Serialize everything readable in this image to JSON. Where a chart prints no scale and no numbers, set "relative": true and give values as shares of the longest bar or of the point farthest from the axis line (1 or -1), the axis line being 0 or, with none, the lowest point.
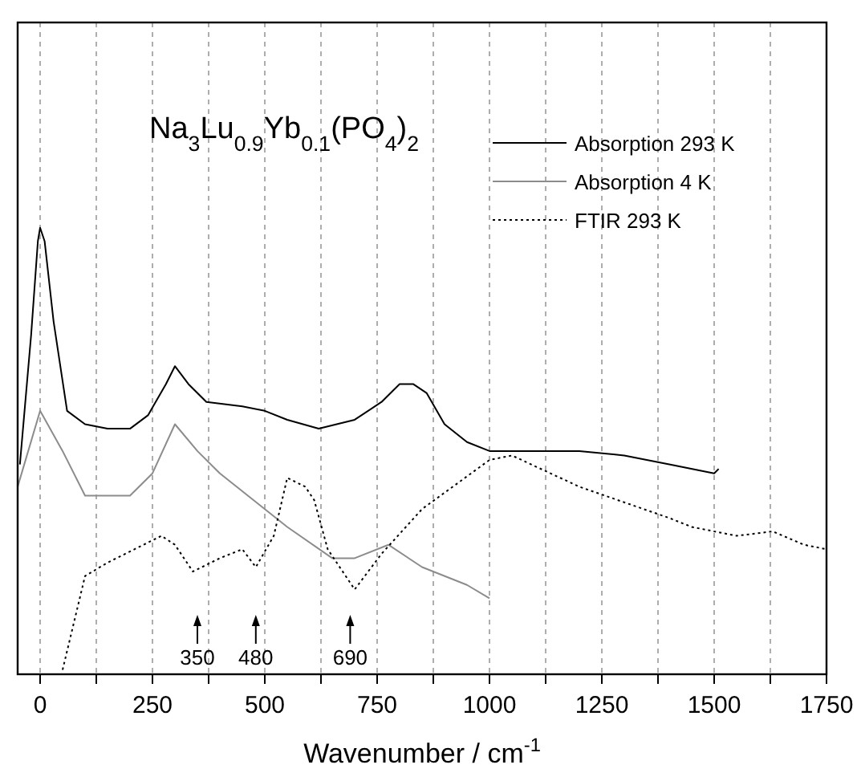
{
  "chart_data": {
    "type": "line",
    "title": "Na$_{3}$Lu$_{0.9}$Yb$_{0.1}$(PO$_{4}$)$_{2}$",
    "xlabel": "Wavenumber / cm$^{-1}$",
    "relative": true,
    "xlim": [
      -50,
      1750
    ],
    "xticks": [
      0,
      {
        "value": 125,
        "label": null
      },
      250,
      {
        "value": 375,
        "label": null
      },
      500,
      {
        "value": 625,
        "label": null
      },
      750,
      {
        "value": 875,
        "label": null
      },
      1000,
      {
        "value": 1125,
        "label": null
      },
      1250,
      {
        "value": 1375,
        "label": null
      },
      1500,
      {
        "value": 1625,
        "label": null
      },
      1750
    ],
    "grid": "x",
    "legend": "top right",
    "series": [
      {
        "name": "Absorption 293 K",
        "color": "#000000",
        "line_style": "solid",
        "x": [
          -45,
          -20,
          -5,
          0,
          10,
          30,
          60,
          100,
          150,
          200,
          240,
          280,
          300,
          330,
          370,
          450,
          500,
          550,
          620,
          700,
          760,
          800,
          830,
          860,
          900,
          950,
          1000,
          1100,
          1200,
          1300,
          1400,
          1500,
          1510
        ],
        "values": [
          0.47,
          0.76,
          0.97,
          1,
          0.97,
          0.79,
          0.59,
          0.56,
          0.55,
          0.55,
          0.58,
          0.65,
          0.69,
          0.65,
          0.61,
          0.6,
          0.59,
          0.57,
          0.55,
          0.57,
          0.61,
          0.65,
          0.65,
          0.63,
          0.56,
          0.52,
          0.5,
          0.5,
          0.5,
          0.49,
          0.47,
          0.45,
          0.46
        ]
      },
      {
        "name": "Absorption 4 K",
        "color": "#8c8c8c",
        "line_style": "solid",
        "x": [
          -50,
          0,
          50,
          100,
          200,
          250,
          300,
          350,
          400,
          500,
          550,
          650,
          700,
          775,
          850,
          950,
          1000
        ],
        "values": [
          0.42,
          0.59,
          0.5,
          0.4,
          0.4,
          0.45,
          0.56,
          0.5,
          0.45,
          0.37,
          0.33,
          0.26,
          0.26,
          0.29,
          0.24,
          0.2,
          0.17
        ]
      },
      {
        "name": "FTIR 293 K",
        "color": "#000000",
        "line_style": "dotted",
        "x": [
          50,
          100,
          150,
          270,
          300,
          340,
          400,
          450,
          480,
          520,
          550,
          590,
          610,
          640,
          700,
          760,
          850,
          1000,
          1050,
          1200,
          1400,
          1450,
          1550,
          1630,
          1700,
          1750
        ],
        "values": [
          0.01,
          0.22,
          0.25,
          0.31,
          0.29,
          0.23,
          0.26,
          0.28,
          0.24,
          0.31,
          0.44,
          0.42,
          0.39,
          0.28,
          0.19,
          0.27,
          0.37,
          0.48,
          0.49,
          0.42,
          0.35,
          0.33,
          0.31,
          0.32,
          0.29,
          0.28
        ]
      }
    ],
    "ref_lines": [
      {
        "axis": "x",
        "value": 350,
        "label": "350"
      },
      {
        "axis": "x",
        "value": 480,
        "label": "480"
      },
      {
        "axis": "x",
        "value": 690,
        "label": "690"
      }
    ]
  }
}
